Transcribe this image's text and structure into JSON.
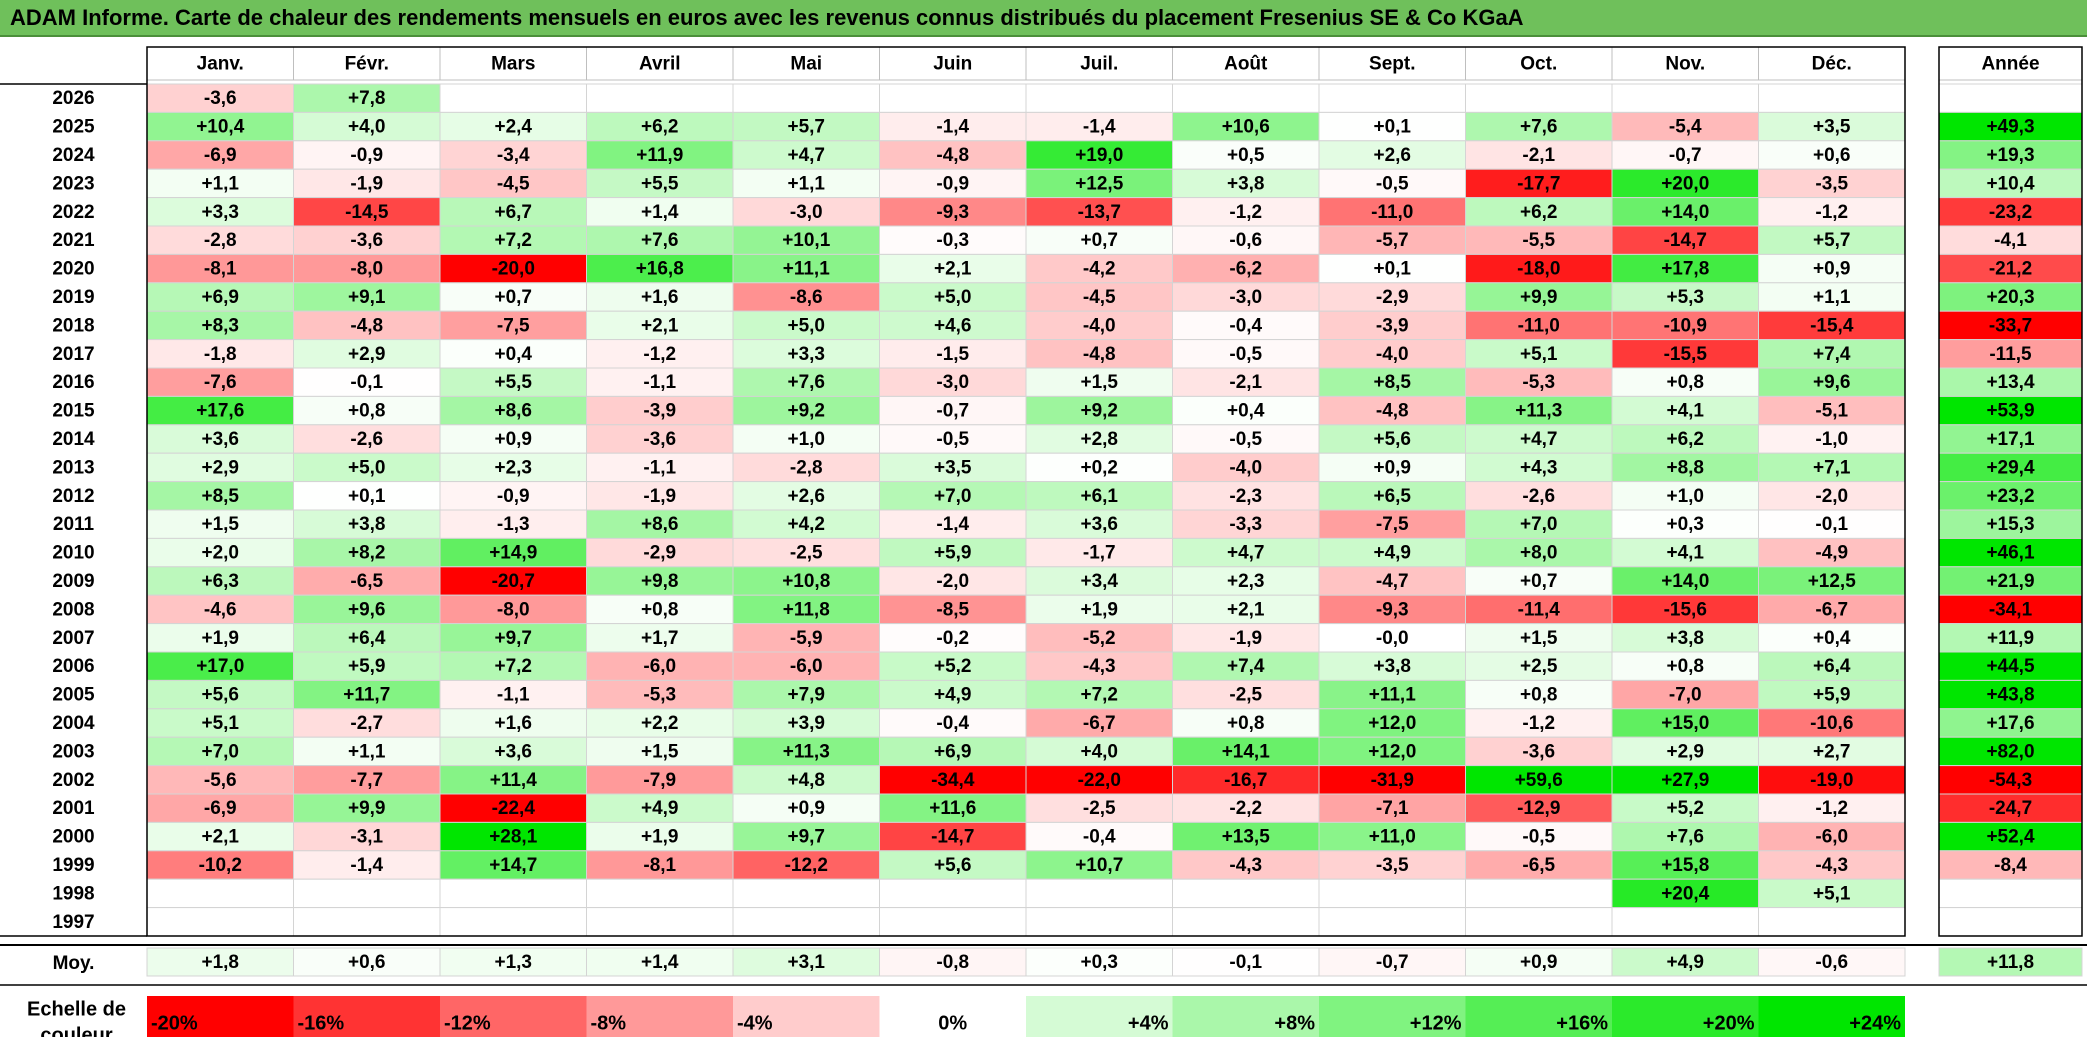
{
  "title": "ADAM Informe. Carte de chaleur des rendements mensuels en euros avec les revenus connus distribués du placement Fresenius SE & Co KGaA",
  "chart_data": {
    "type": "heatmap",
    "months": [
      "Janv.",
      "Févr.",
      "Mars",
      "Avril",
      "Mai",
      "Juin",
      "Juil.",
      "Août",
      "Sept.",
      "Oct.",
      "Nov.",
      "Déc."
    ],
    "annual_header": "Année",
    "rows": [
      {
        "year": "2026",
        "values": [
          "-3,6",
          "+7,8",
          "",
          "",
          "",
          "",
          "",
          "",
          "",
          "",
          "",
          ""
        ],
        "annual": ""
      },
      {
        "year": "2025",
        "values": [
          "+10,4",
          "+4,0",
          "+2,4",
          "+6,2",
          "+5,7",
          "-1,4",
          "-1,4",
          "+10,6",
          "+0,1",
          "+7,6",
          "-5,4",
          "+3,5"
        ],
        "annual": "+49,3"
      },
      {
        "year": "2024",
        "values": [
          "-6,9",
          "-0,9",
          "-3,4",
          "+11,9",
          "+4,7",
          "-4,8",
          "+19,0",
          "+0,5",
          "+2,6",
          "-2,1",
          "-0,7",
          "+0,6"
        ],
        "annual": "+19,3"
      },
      {
        "year": "2023",
        "values": [
          "+1,1",
          "-1,9",
          "-4,5",
          "+5,5",
          "+1,1",
          "-0,9",
          "+12,5",
          "+3,8",
          "-0,5",
          "-17,7",
          "+20,0",
          "-3,5"
        ],
        "annual": "+10,4"
      },
      {
        "year": "2022",
        "values": [
          "+3,3",
          "-14,5",
          "+6,7",
          "+1,4",
          "-3,0",
          "-9,3",
          "-13,7",
          "-1,2",
          "-11,0",
          "+6,2",
          "+14,0",
          "-1,2"
        ],
        "annual": "-23,2"
      },
      {
        "year": "2021",
        "values": [
          "-2,8",
          "-3,6",
          "+7,2",
          "+7,6",
          "+10,1",
          "-0,3",
          "+0,7",
          "-0,6",
          "-5,7",
          "-5,5",
          "-14,7",
          "+5,7"
        ],
        "annual": "-4,1"
      },
      {
        "year": "2020",
        "values": [
          "-8,1",
          "-8,0",
          "-20,0",
          "+16,8",
          "+11,1",
          "+2,1",
          "-4,2",
          "-6,2",
          "+0,1",
          "-18,0",
          "+17,8",
          "+0,9"
        ],
        "annual": "-21,2"
      },
      {
        "year": "2019",
        "values": [
          "+6,9",
          "+9,1",
          "+0,7",
          "+1,6",
          "-8,6",
          "+5,0",
          "-4,5",
          "-3,0",
          "-2,9",
          "+9,9",
          "+5,3",
          "+1,1"
        ],
        "annual": "+20,3"
      },
      {
        "year": "2018",
        "values": [
          "+8,3",
          "-4,8",
          "-7,5",
          "+2,1",
          "+5,0",
          "+4,6",
          "-4,0",
          "-0,4",
          "-3,9",
          "-11,0",
          "-10,9",
          "-15,4"
        ],
        "annual": "-33,7"
      },
      {
        "year": "2017",
        "values": [
          "-1,8",
          "+2,9",
          "+0,4",
          "-1,2",
          "+3,3",
          "-1,5",
          "-4,8",
          "-0,5",
          "-4,0",
          "+5,1",
          "-15,5",
          "+7,4"
        ],
        "annual": "-11,5"
      },
      {
        "year": "2016",
        "values": [
          "-7,6",
          "-0,1",
          "+5,5",
          "-1,1",
          "+7,6",
          "-3,0",
          "+1,5",
          "-2,1",
          "+8,5",
          "-5,3",
          "+0,8",
          "+9,6"
        ],
        "annual": "+13,4"
      },
      {
        "year": "2015",
        "values": [
          "+17,6",
          "+0,8",
          "+8,6",
          "-3,9",
          "+9,2",
          "-0,7",
          "+9,2",
          "+0,4",
          "-4,8",
          "+11,3",
          "+4,1",
          "-5,1"
        ],
        "annual": "+53,9"
      },
      {
        "year": "2014",
        "values": [
          "+3,6",
          "-2,6",
          "+0,9",
          "-3,6",
          "+1,0",
          "-0,5",
          "+2,8",
          "-0,5",
          "+5,6",
          "+4,7",
          "+6,2",
          "-1,0"
        ],
        "annual": "+17,1"
      },
      {
        "year": "2013",
        "values": [
          "+2,9",
          "+5,0",
          "+2,3",
          "-1,1",
          "-2,8",
          "+3,5",
          "+0,2",
          "-4,0",
          "+0,9",
          "+4,3",
          "+8,8",
          "+7,1"
        ],
        "annual": "+29,4"
      },
      {
        "year": "2012",
        "values": [
          "+8,5",
          "+0,1",
          "-0,9",
          "-1,9",
          "+2,6",
          "+7,0",
          "+6,1",
          "-2,3",
          "+6,5",
          "-2,6",
          "+1,0",
          "-2,0"
        ],
        "annual": "+23,2"
      },
      {
        "year": "2011",
        "values": [
          "+1,5",
          "+3,8",
          "-1,3",
          "+8,6",
          "+4,2",
          "-1,4",
          "+3,6",
          "-3,3",
          "-7,5",
          "+7,0",
          "+0,3",
          "-0,1"
        ],
        "annual": "+15,3"
      },
      {
        "year": "2010",
        "values": [
          "+2,0",
          "+8,2",
          "+14,9",
          "-2,9",
          "-2,5",
          "+5,9",
          "-1,7",
          "+4,7",
          "+4,9",
          "+8,0",
          "+4,1",
          "-4,9"
        ],
        "annual": "+46,1"
      },
      {
        "year": "2009",
        "values": [
          "+6,3",
          "-6,5",
          "-20,7",
          "+9,8",
          "+10,8",
          "-2,0",
          "+3,4",
          "+2,3",
          "-4,7",
          "+0,7",
          "+14,0",
          "+12,5"
        ],
        "annual": "+21,9"
      },
      {
        "year": "2008",
        "values": [
          "-4,6",
          "+9,6",
          "-8,0",
          "+0,8",
          "+11,8",
          "-8,5",
          "+1,9",
          "+2,1",
          "-9,3",
          "-11,4",
          "-15,6",
          "-6,7"
        ],
        "annual": "-34,1"
      },
      {
        "year": "2007",
        "values": [
          "+1,9",
          "+6,4",
          "+9,7",
          "+1,7",
          "-5,9",
          "-0,2",
          "-5,2",
          "-1,9",
          "-0,0",
          "+1,5",
          "+3,8",
          "+0,4"
        ],
        "annual": "+11,9"
      },
      {
        "year": "2006",
        "values": [
          "+17,0",
          "+5,9",
          "+7,2",
          "-6,0",
          "-6,0",
          "+5,2",
          "-4,3",
          "+7,4",
          "+3,8",
          "+2,5",
          "+0,8",
          "+6,4"
        ],
        "annual": "+44,5"
      },
      {
        "year": "2005",
        "values": [
          "+5,6",
          "+11,7",
          "-1,1",
          "-5,3",
          "+7,9",
          "+4,9",
          "+7,2",
          "-2,5",
          "+11,1",
          "+0,8",
          "-7,0",
          "+5,9"
        ],
        "annual": "+43,8"
      },
      {
        "year": "2004",
        "values": [
          "+5,1",
          "-2,7",
          "+1,6",
          "+2,2",
          "+3,9",
          "-0,4",
          "-6,7",
          "+0,8",
          "+12,0",
          "-1,2",
          "+15,0",
          "-10,6"
        ],
        "annual": "+17,6"
      },
      {
        "year": "2003",
        "values": [
          "+7,0",
          "+1,1",
          "+3,6",
          "+1,5",
          "+11,3",
          "+6,9",
          "+4,0",
          "+14,1",
          "+12,0",
          "-3,6",
          "+2,9",
          "+2,7"
        ],
        "annual": "+82,0"
      },
      {
        "year": "2002",
        "values": [
          "-5,6",
          "-7,7",
          "+11,4",
          "-7,9",
          "+4,8",
          "-34,4",
          "-22,0",
          "-16,7",
          "-31,9",
          "+59,6",
          "+27,9",
          "-19,0"
        ],
        "annual": "-54,3"
      },
      {
        "year": "2001",
        "values": [
          "-6,9",
          "+9,9",
          "-22,4",
          "+4,9",
          "+0,9",
          "+11,6",
          "-2,5",
          "-2,2",
          "-7,1",
          "-12,9",
          "+5,2",
          "-1,2"
        ],
        "annual": "-24,7"
      },
      {
        "year": "2000",
        "values": [
          "+2,1",
          "-3,1",
          "+28,1",
          "+1,9",
          "+9,7",
          "-14,7",
          "-0,4",
          "+13,5",
          "+11,0",
          "-0,5",
          "+7,6",
          "-6,0"
        ],
        "annual": "+52,4"
      },
      {
        "year": "1999",
        "values": [
          "-10,2",
          "-1,4",
          "+14,7",
          "-8,1",
          "-12,2",
          "+5,6",
          "+10,7",
          "-4,3",
          "-3,5",
          "-6,5",
          "+15,8",
          "-4,3"
        ],
        "annual": "-8,4"
      },
      {
        "year": "1998",
        "values": [
          "",
          "",
          "",
          "",
          "",
          "",
          "",
          "",
          "",
          "",
          "+20,4",
          "+5,1"
        ],
        "annual": ""
      },
      {
        "year": "1997",
        "values": [
          "",
          "",
          "",
          "",
          "",
          "",
          "",
          "",
          "",
          "",
          "",
          ""
        ],
        "annual": ""
      }
    ],
    "average": {
      "label": "Moy.",
      "values": [
        "+1,8",
        "+0,6",
        "+1,3",
        "+1,4",
        "+3,1",
        "-0,8",
        "+0,3",
        "-0,1",
        "-0,7",
        "+0,9",
        "+4,9",
        "-0,6"
      ],
      "annual": "+11,8"
    },
    "scale": {
      "label_line1": "Echelle de",
      "label_line2": "couleur",
      "steps": [
        "-20%",
        "-16%",
        "-12%",
        "-8%",
        "-4%",
        "0%",
        "+4%",
        "+8%",
        "+12%",
        "+16%",
        "+20%",
        "+24%"
      ]
    },
    "colors": {
      "negative": "#ff0000",
      "neutral": "#ffffff",
      "positive": "#00e600",
      "grid": "#bfbfbf",
      "title_bg": "#6fc05b"
    }
  }
}
